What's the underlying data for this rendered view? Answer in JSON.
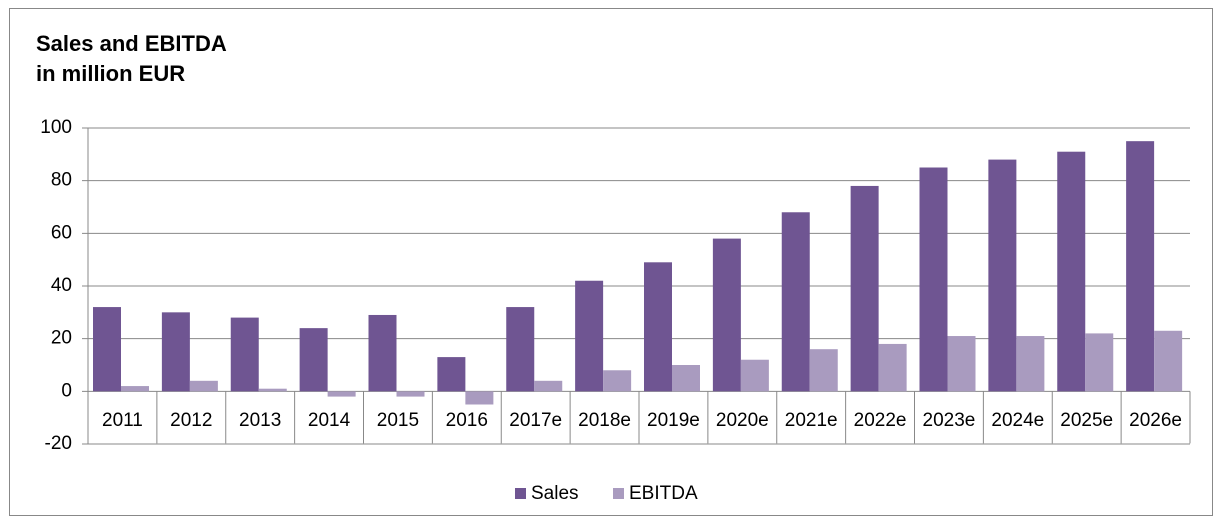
{
  "chart_data": {
    "type": "bar",
    "title": "Sales and EBITDA",
    "subtitle": "in million EUR",
    "categories": [
      "2011",
      "2012",
      "2013",
      "2014",
      "2015",
      "2016",
      "2017e",
      "2018e",
      "2019e",
      "2020e",
      "2021e",
      "2022e",
      "2023e",
      "2024e",
      "2025e",
      "2026e"
    ],
    "series": [
      {
        "name": "Sales",
        "color": "#6f5592",
        "values": [
          32,
          30,
          28,
          24,
          29,
          13,
          32,
          42,
          49,
          58,
          68,
          78,
          85,
          88,
          91,
          95
        ]
      },
      {
        "name": "EBITDA",
        "color": "#a99bbf",
        "values": [
          2,
          4,
          1,
          -2,
          -2,
          -5,
          4,
          8,
          10,
          12,
          16,
          18,
          21,
          21,
          22,
          23
        ]
      }
    ],
    "ylim": [
      -20,
      100
    ],
    "yticks": [
      -20,
      0,
      20,
      40,
      60,
      80,
      100
    ],
    "grid": true,
    "legend": "bottom"
  }
}
